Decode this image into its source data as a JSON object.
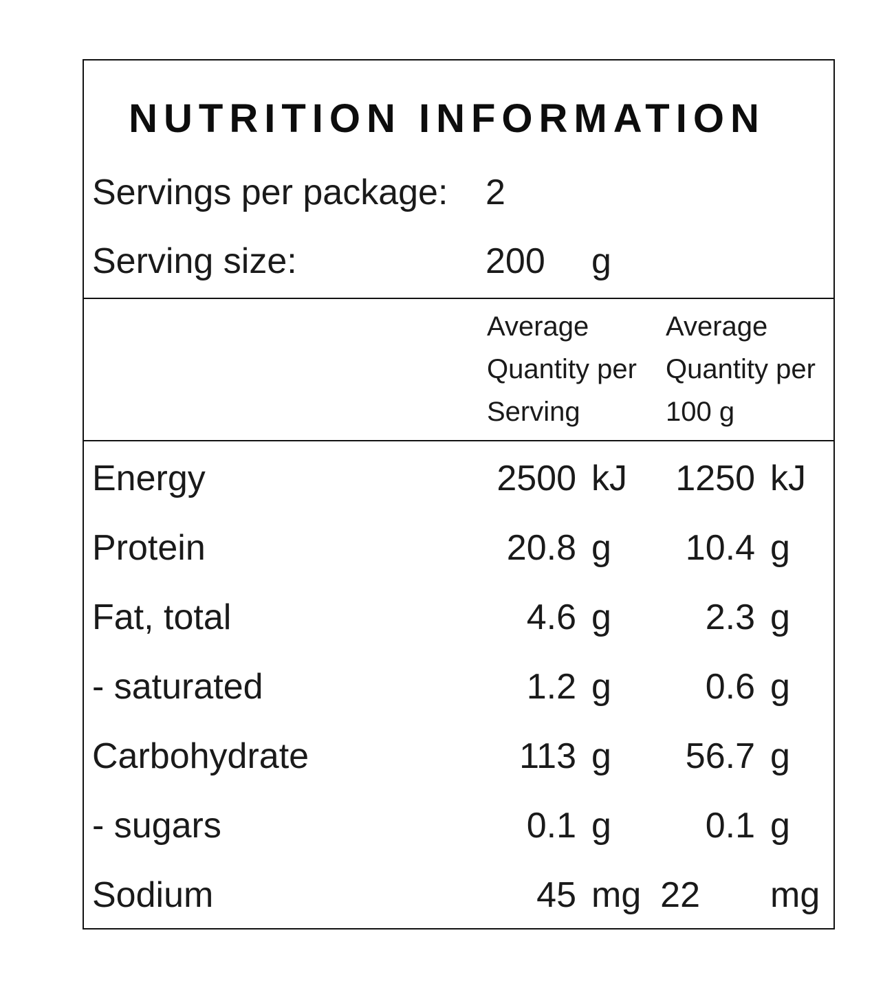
{
  "panel": {
    "title": "NUTRITION INFORMATION",
    "servings_per_package_label": "Servings per package:",
    "servings_per_package_value": "2",
    "serving_size_label": "Serving size:",
    "serving_size_value": "200",
    "serving_size_unit": "g",
    "header_per_serving": [
      "Average",
      "Quantity per",
      "Serving"
    ],
    "header_per_100g": [
      "Average",
      "Quantity per",
      "100 g"
    ],
    "nutrients": [
      {
        "name": "Energy",
        "serving_value": "2500",
        "serving_unit": "kJ",
        "per100_value": "1250",
        "per100_unit": "kJ"
      },
      {
        "name": "Protein",
        "serving_value": "20.8",
        "serving_unit": "g",
        "per100_value": "10.4",
        "per100_unit": "g"
      },
      {
        "name": "Fat, total",
        "serving_value": "4.6",
        "serving_unit": "g",
        "per100_value": "2.3",
        "per100_unit": "g"
      },
      {
        "name": "- saturated",
        "serving_value": "1.2",
        "serving_unit": "g",
        "per100_value": "0.6",
        "per100_unit": "g"
      },
      {
        "name": "Carbohydrate",
        "serving_value": "113",
        "serving_unit": "g",
        "per100_value": "56.7",
        "per100_unit": "g"
      },
      {
        "name": "- sugars",
        "serving_value": "0.1",
        "serving_unit": "g",
        "per100_value": "0.1",
        "per100_unit": "g"
      },
      {
        "name": "Sodium",
        "serving_value": "45",
        "serving_unit": "mg",
        "per100_value": "22",
        "per100_unit": "mg"
      }
    ]
  }
}
